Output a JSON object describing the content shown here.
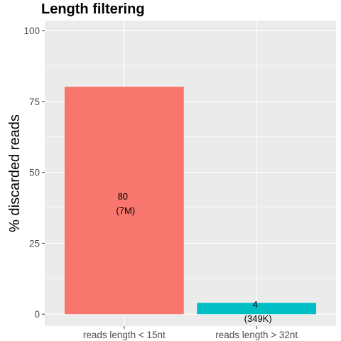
{
  "chart_data": {
    "type": "bar",
    "title": "Length filtering",
    "xlabel": "",
    "ylabel": "% discarded reads",
    "categories": [
      "reads length < 15nt",
      "reads length > 32nt"
    ],
    "values": [
      80.2,
      4.0
    ],
    "value_labels": [
      "80",
      "4"
    ],
    "count_labels": [
      "(7M)",
      "(349K)"
    ],
    "colors": [
      "#F8766D",
      "#00BFC4"
    ],
    "ylim": [
      -4.2,
      103.5
    ],
    "yticks": [
      0,
      25,
      50,
      75,
      100
    ],
    "ytick_labels": [
      "0",
      "25",
      "50",
      "75",
      "100"
    ],
    "grid": true,
    "panel_background": "#EBEBEB",
    "legend": "none"
  }
}
